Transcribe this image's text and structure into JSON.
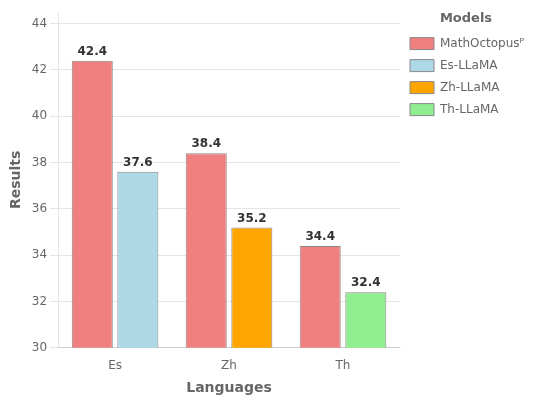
{
  "chart_data": {
    "type": "bar",
    "categories": [
      "Es",
      "Zh",
      "Th"
    ],
    "series": [
      {
        "name": "MathOctopusᴾ",
        "color": "#F08080",
        "values": [
          42.4,
          38.4,
          34.4
        ]
      },
      {
        "name": "Es-LLaMA",
        "color": "#ADD8E6",
        "values": [
          37.6,
          null,
          null
        ]
      },
      {
        "name": "Zh-LLaMA",
        "color": "#FFA500",
        "values": [
          null,
          35.2,
          null
        ]
      },
      {
        "name": "Th-LLaMA",
        "color": "#90EE90",
        "values": [
          null,
          null,
          32.4
        ]
      }
    ],
    "xlabel": "Languages",
    "ylabel": "Results",
    "ylim": [
      30,
      44.5
    ],
    "yticks": [
      30,
      32,
      34,
      36,
      38,
      40,
      42,
      44
    ],
    "grid": true,
    "legend": "upper right",
    "legend_title": "Models",
    "data_labels": true
  }
}
